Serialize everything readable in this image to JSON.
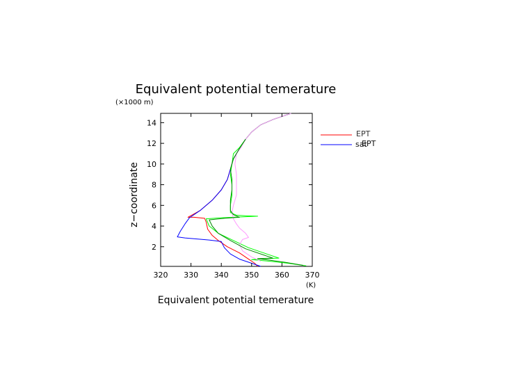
{
  "chart_data": {
    "type": "line",
    "title": "Equivalent potential temerature",
    "xlabel": "Equivalent potential temerature",
    "xunit": "(K)",
    "ylabel": "z−coordinate",
    "yunit": "(×1000 m)",
    "xlim": [
      320,
      370
    ],
    "ylim": [
      0.1,
      14.9
    ],
    "xticks": [
      320,
      330,
      340,
      350,
      360,
      370
    ],
    "yticks": [
      2,
      4,
      6,
      8,
      10,
      12,
      14
    ],
    "grid": false,
    "legend": {
      "placement": "right",
      "entries": [
        {
          "label": "EPT",
          "color": "#ff0000"
        },
        {
          "label": "sat",
          "color": "#0000ff"
        },
        {
          "label": "EPT",
          "color": "#0000ff"
        }
      ]
    },
    "series": [
      {
        "name": "EPT",
        "color": "#ff0000",
        "points": [
          [
            352,
            0.1
          ],
          [
            351,
            0.4
          ],
          [
            349,
            0.8
          ],
          [
            346,
            1.4
          ],
          [
            342,
            2.0
          ],
          [
            339,
            2.6
          ],
          [
            337,
            3.1
          ],
          [
            335.5,
            3.7
          ],
          [
            335,
            4.4
          ],
          [
            334.5,
            4.75
          ],
          [
            331,
            4.85
          ],
          [
            329,
            4.85
          ],
          [
            333,
            5.5
          ],
          [
            337,
            6.5
          ],
          [
            340,
            7.5
          ],
          [
            342,
            8.5
          ],
          [
            343,
            9.5
          ],
          [
            344,
            10.5
          ],
          [
            346,
            11.5
          ],
          [
            348,
            12.4
          ],
          [
            350,
            13.1
          ],
          [
            353,
            13.8
          ],
          [
            357,
            14.3
          ],
          [
            361,
            14.7
          ],
          [
            363,
            14.9
          ]
        ]
      },
      {
        "name": "EPT",
        "color": "#0000ff",
        "points": [
          [
            353,
            0.1
          ],
          [
            350,
            0.4
          ],
          [
            346,
            0.8
          ],
          [
            343,
            1.3
          ],
          [
            341,
            1.9
          ],
          [
            340,
            2.5
          ],
          [
            336,
            2.65
          ],
          [
            332,
            2.75
          ],
          [
            328,
            2.85
          ],
          [
            325.5,
            2.95
          ],
          [
            326.5,
            3.5
          ],
          [
            328,
            4.2
          ],
          [
            329.5,
            4.8
          ],
          [
            333,
            5.5
          ],
          [
            337,
            6.5
          ],
          [
            340,
            7.5
          ],
          [
            342,
            8.5
          ],
          [
            343,
            9.5
          ],
          [
            344,
            10.5
          ],
          [
            346,
            11.5
          ],
          [
            348,
            12.4
          ],
          [
            350,
            13.1
          ],
          [
            353,
            13.8
          ],
          [
            357,
            14.3
          ],
          [
            361,
            14.7
          ],
          [
            363,
            14.9
          ]
        ]
      },
      {
        "name": "",
        "color": "#00ff00",
        "points": [
          [
            368,
            0.15
          ],
          [
            362,
            0.4
          ],
          [
            356,
            0.6
          ],
          [
            350,
            0.75
          ],
          [
            355,
            0.85
          ],
          [
            359,
            0.9
          ],
          [
            355,
            1.3
          ],
          [
            349,
            1.9
          ],
          [
            344,
            2.6
          ],
          [
            339,
            3.3
          ],
          [
            336,
            4.0
          ],
          [
            335,
            4.7
          ],
          [
            340,
            4.8
          ],
          [
            348,
            4.9
          ],
          [
            352,
            4.95
          ],
          [
            348,
            5.0
          ],
          [
            345,
            5.05
          ],
          [
            343,
            5.3
          ],
          [
            343,
            6.0
          ],
          [
            343.5,
            7.0
          ],
          [
            343.5,
            8.0
          ],
          [
            343,
            9.0
          ],
          [
            343.5,
            10.0
          ],
          [
            344,
            11.0
          ],
          [
            346,
            11.6
          ],
          [
            348,
            12.4
          ],
          [
            350,
            13.1
          ],
          [
            353,
            13.8
          ],
          [
            357,
            14.3
          ],
          [
            361,
            14.7
          ],
          [
            363,
            14.9
          ]
        ]
      },
      {
        "name": "",
        "color": "#ff9aff",
        "points": [
          [
            353,
            0.6
          ],
          [
            350,
            1.0
          ],
          [
            347,
            1.6
          ],
          [
            346,
            2.2
          ],
          [
            347,
            2.7
          ],
          [
            349,
            2.9
          ],
          [
            348,
            3.3
          ],
          [
            346,
            3.8
          ],
          [
            345,
            4.2
          ],
          [
            344,
            4.7
          ],
          [
            343.5,
            5.3
          ],
          [
            344,
            6.0
          ],
          [
            345,
            7.0
          ],
          [
            345,
            8.0
          ],
          [
            345,
            9.0
          ],
          [
            344.5,
            10.0
          ],
          [
            345,
            11.0
          ],
          [
            346.5,
            11.6
          ],
          [
            348,
            12.4
          ],
          [
            350,
            13.1
          ],
          [
            353,
            13.8
          ],
          [
            357,
            14.3
          ],
          [
            361,
            14.7
          ],
          [
            363,
            14.9
          ]
        ]
      },
      {
        "name": "",
        "color": "#008a00",
        "points": [
          [
            367,
            0.2
          ],
          [
            361,
            0.5
          ],
          [
            356,
            0.7
          ],
          [
            352,
            0.85
          ],
          [
            357,
            0.9
          ],
          [
            354,
            1.2
          ],
          [
            348,
            1.8
          ],
          [
            343,
            2.6
          ],
          [
            339,
            3.3
          ],
          [
            337,
            4.0
          ],
          [
            336,
            4.6
          ],
          [
            341,
            4.75
          ],
          [
            346,
            4.85
          ],
          [
            344,
            5.1
          ],
          [
            343,
            5.5
          ],
          [
            343,
            6.5
          ],
          [
            343.5,
            7.5
          ],
          [
            343.5,
            8.5
          ],
          [
            343,
            9.5
          ],
          [
            344,
            10.5
          ],
          [
            346,
            11.5
          ],
          [
            348,
            12.4
          ]
        ]
      }
    ]
  }
}
